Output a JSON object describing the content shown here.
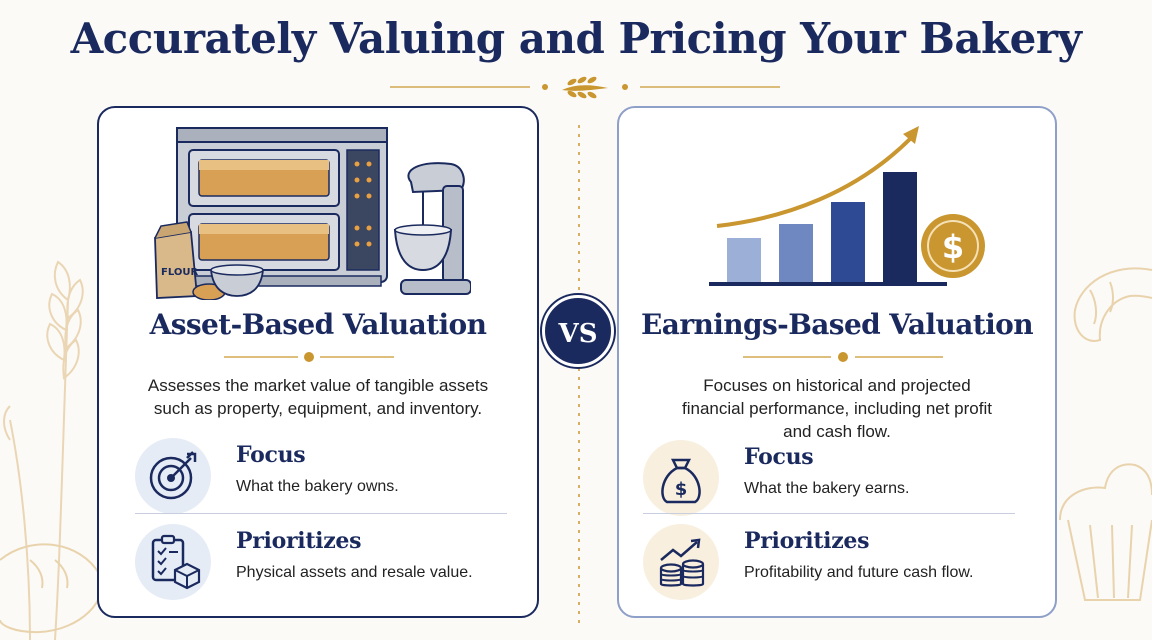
{
  "title": "Accurately Valuing and Pricing Your Bakery",
  "vs_label": "VS",
  "left": {
    "heading": "Asset-Based Valuation",
    "description_lines": [
      "Assesses the market value of tangible assets",
      "such as property, equipment, and inventory."
    ],
    "flour_label": "FLOUR",
    "items": [
      {
        "label": "Focus",
        "text": "What the bakery owns.",
        "icon": "target-icon"
      },
      {
        "label": "Prioritizes",
        "text": "Physical assets and resale value.",
        "icon": "checklist-box-icon"
      }
    ]
  },
  "right": {
    "heading": "Earnings-Based Valuation",
    "description_lines": [
      "Focuses on historical and projected",
      "financial performance, including net profit",
      "and cash flow."
    ],
    "coin_symbol": "$",
    "items": [
      {
        "label": "Focus",
        "text": "What the bakery earns.",
        "icon": "money-bag-icon"
      },
      {
        "label": "Prioritizes",
        "text": "Profitability and future cash flow.",
        "icon": "coins-growth-icon"
      }
    ]
  },
  "colors": {
    "navy": "#1b2a5e",
    "gold": "#c9962f",
    "light_blue": "#e6ecf6",
    "light_gold": "#f8efdf"
  }
}
